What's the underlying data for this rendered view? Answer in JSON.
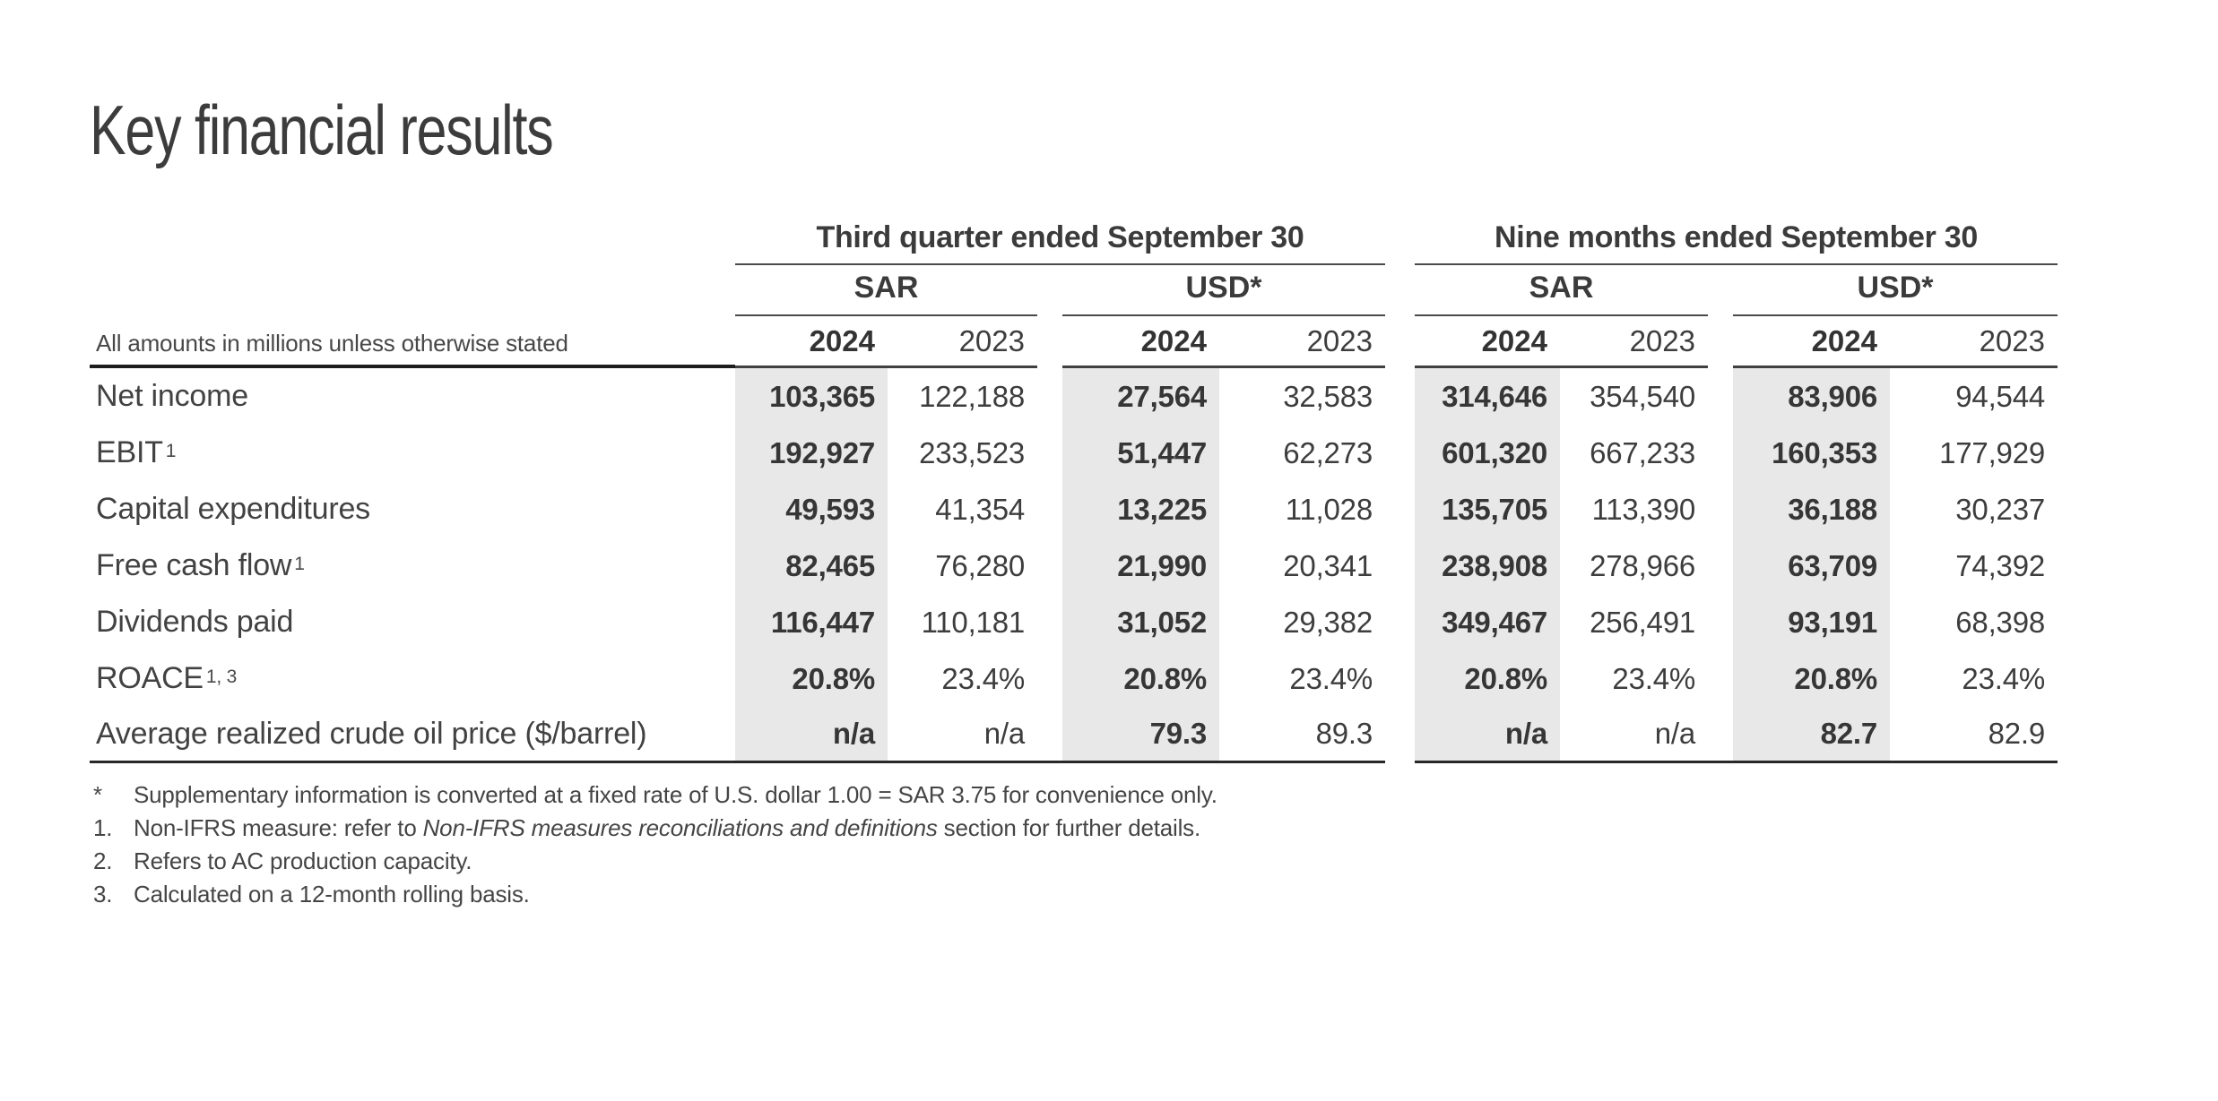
{
  "page": {
    "title": "Key financial results"
  },
  "table": {
    "note": "All amounts in millions unless otherwise stated",
    "groups": [
      {
        "title": "Third quarter ended September 30",
        "currencies": [
          "SAR",
          "USD*"
        ]
      },
      {
        "title": "Nine months ended September 30",
        "currencies": [
          "SAR",
          "USD*"
        ]
      }
    ],
    "years": [
      "2024",
      "2023"
    ],
    "rows": [
      {
        "label": "Net income",
        "sup": "",
        "values": [
          "103,365",
          "122,188",
          "27,564",
          "32,583",
          "314,646",
          "354,540",
          "83,906",
          "94,544"
        ]
      },
      {
        "label": "EBIT",
        "sup": "1",
        "values": [
          "192,927",
          "233,523",
          "51,447",
          "62,273",
          "601,320",
          "667,233",
          "160,353",
          "177,929"
        ]
      },
      {
        "label": "Capital expenditures",
        "sup": "",
        "values": [
          "49,593",
          "41,354",
          "13,225",
          "11,028",
          "135,705",
          "113,390",
          "36,188",
          "30,237"
        ]
      },
      {
        "label": "Free cash flow",
        "sup": "1",
        "values": [
          "82,465",
          "76,280",
          "21,990",
          "20,341",
          "238,908",
          "278,966",
          "63,709",
          "74,392"
        ]
      },
      {
        "label": "Dividends paid",
        "sup": "",
        "values": [
          "116,447",
          "110,181",
          "31,052",
          "29,382",
          "349,467",
          "256,491",
          "93,191",
          "68,398"
        ]
      },
      {
        "label": "ROACE",
        "sup": "1, 3",
        "values": [
          "20.8%",
          "23.4%",
          "20.8%",
          "23.4%",
          "20.8%",
          "23.4%",
          "20.8%",
          "23.4%"
        ]
      },
      {
        "label": "Average realized crude oil price ($/barrel)",
        "sup": "",
        "values": [
          "n/a",
          "n/a",
          "79.3",
          "89.3",
          "n/a",
          "n/a",
          "82.7",
          "82.9"
        ]
      }
    ]
  },
  "footnotes": [
    {
      "marker": "*",
      "text_before": "Supplementary information is converted at a fixed rate of U.S. dollar 1.00 = SAR 3.75 for convenience only.",
      "italic": "",
      "text_after": ""
    },
    {
      "marker": "1.",
      "text_before": "Non-IFRS measure: refer to ",
      "italic": "Non-IFRS measures reconciliations and definitions",
      "text_after": " section for further details."
    },
    {
      "marker": "2.",
      "text_before": "Refers to AC production capacity.",
      "italic": "",
      "text_after": ""
    },
    {
      "marker": "3.",
      "text_before": "Calculated on a 12-month rolling basis.",
      "italic": "",
      "text_after": ""
    }
  ],
  "colors": {
    "text": "#3d3d3d",
    "shaded_column": "#e8e8e8",
    "rule_dark": "#1d1d1d",
    "rule_medium": "#404040"
  }
}
